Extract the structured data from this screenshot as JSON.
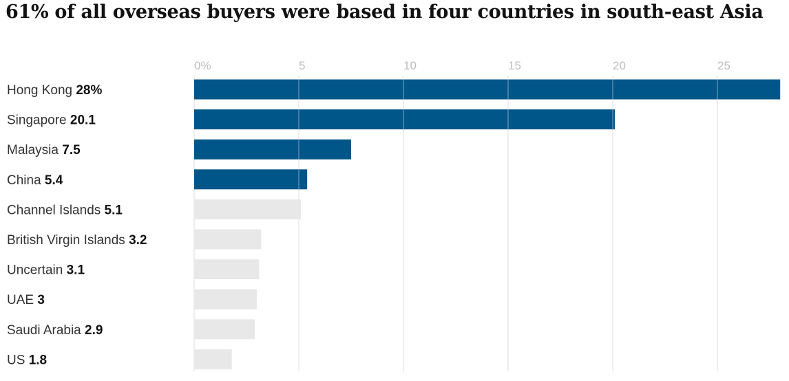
{
  "chart_data": {
    "type": "bar",
    "orientation": "horizontal",
    "title": "61% of all overseas buyers were based in four countries in south-east Asia",
    "categories": [
      "Hong Kong",
      "Singapore",
      "Malaysia",
      "China",
      "Channel Islands",
      "British Virgin Islands",
      "Uncertain",
      "UAE",
      "Saudi Arabia",
      "US"
    ],
    "values": [
      28,
      20.1,
      7.5,
      5.4,
      5.1,
      3.2,
      3.1,
      3,
      2.9,
      1.8
    ],
    "value_labels": [
      "28%",
      "20.1",
      "7.5",
      "5.4",
      "5.1",
      "3.2",
      "3.1",
      "3",
      "2.9",
      "1.8"
    ],
    "highlighted": [
      true,
      true,
      true,
      true,
      false,
      false,
      false,
      false,
      false,
      false
    ],
    "xticks": [
      "0%",
      "5",
      "10",
      "15",
      "20",
      "25"
    ],
    "xtick_values": [
      0,
      5,
      10,
      15,
      20,
      25
    ],
    "xlim": [
      0,
      28
    ],
    "xlabel": "",
    "ylabel": "",
    "grid": true,
    "colors": {
      "highlight": "#005689",
      "muted": "#e8e8e8",
      "gridline": "#dcdcdc",
      "gridline_on_bar": "#5a89ad"
    }
  }
}
